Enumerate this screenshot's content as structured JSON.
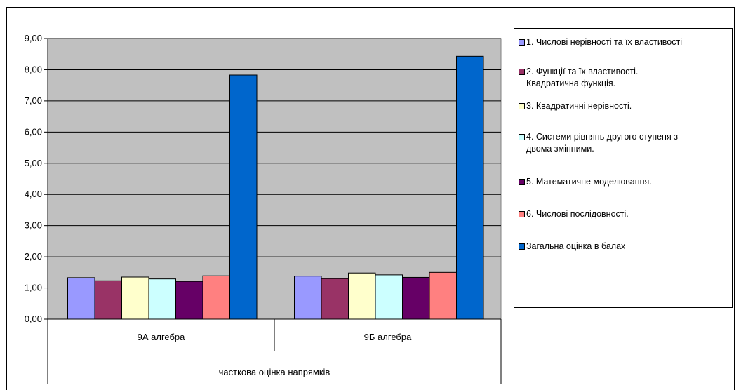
{
  "chart_data": {
    "type": "bar",
    "title": "",
    "xlabel": "",
    "ylabel": "",
    "ylim": [
      0,
      9
    ],
    "y_ticks": [
      "0,00",
      "1,00",
      "2,00",
      "3,00",
      "4,00",
      "5,00",
      "6,00",
      "7,00",
      "8,00",
      "9,00"
    ],
    "grid": true,
    "plot_background": "#c0c0c0",
    "categories": [
      "9А алгебра",
      "9Б алгебра"
    ],
    "group_label": "часткова оцінка напрямків",
    "legend_position": "right",
    "series": [
      {
        "name": "1. Числові нерівності та їх властивості",
        "color": "#9999ff",
        "values": [
          1.33,
          1.38
        ]
      },
      {
        "name": "2.  Функції та їх властивості.\nКвадратична функція.",
        "color": "#993366",
        "values": [
          1.23,
          1.3
        ]
      },
      {
        "name": "3. Квадратичні нерівності.",
        "color": "#ffffcc",
        "values": [
          1.35,
          1.48
        ]
      },
      {
        "name": "4. Системи рівнянь другого ступеня з\nдвома змінними.",
        "color": "#ccffff",
        "values": [
          1.29,
          1.42
        ]
      },
      {
        "name": "5. Математичне моделювання.",
        "color": "#660066",
        "values": [
          1.21,
          1.34
        ]
      },
      {
        "name": "6. Числові послідовності.",
        "color": "#ff8080",
        "values": [
          1.39,
          1.5
        ]
      },
      {
        "name": "Загальна оцінка в балах",
        "color": "#0066cc",
        "values": [
          7.83,
          8.43
        ]
      }
    ]
  }
}
